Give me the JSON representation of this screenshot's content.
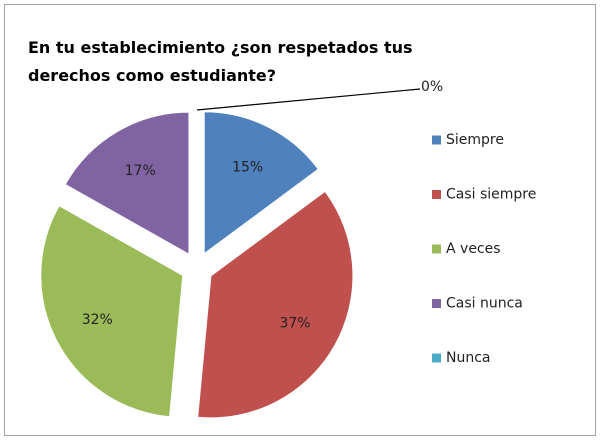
{
  "chart_data": {
    "type": "pie",
    "title": "En tu establecimiento ¿son respetados tus derechos como estudiante?",
    "categories": [
      "Siempre",
      "Casi siempre",
      "A veces",
      "Casi nunca",
      "Nunca"
    ],
    "values": [
      15,
      37,
      32,
      17,
      0
    ],
    "value_labels": [
      "15%",
      "37%",
      "32%",
      "17%",
      "0%"
    ],
    "colors": [
      "#4f81bd",
      "#c0504d",
      "#9bbb59",
      "#8064a2",
      "#4bacc6"
    ],
    "legend": "right"
  }
}
